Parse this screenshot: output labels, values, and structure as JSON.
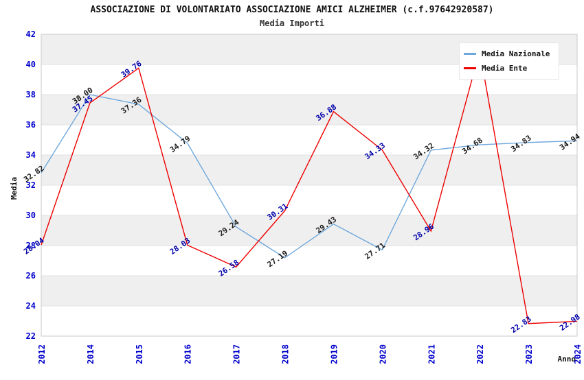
{
  "header": {
    "title": "ASSOCIAZIONE DI VOLONTARIATO ASSOCIAZIONE AMICI ALZHEIMER (c.f.97642920587)",
    "subtitle": "Media Importi"
  },
  "chart_data": {
    "type": "line",
    "title": "ASSOCIAZIONE DI VOLONTARIATO ASSOCIAZIONE AMICI ALZHEIMER (c.f.97642920587)",
    "subtitle": "Media Importi",
    "xlabel": "Anno",
    "ylabel": "Media",
    "categories": [
      "2012",
      "2014",
      "2015",
      "2016",
      "2017",
      "2018",
      "2019",
      "2020",
      "2021",
      "2022",
      "2023",
      "2024"
    ],
    "series": [
      {
        "name": "Media Nazionale",
        "color": "#6FA8DC",
        "label_color": "#1A1A1A",
        "values": [
          32.82,
          38.0,
          37.36,
          34.79,
          29.24,
          27.19,
          29.43,
          27.71,
          34.32,
          34.68,
          34.83,
          34.94
        ]
      },
      {
        "name": "Media Ente",
        "color": "#EE0000",
        "label_color": "#0000AA",
        "values": [
          28.04,
          37.45,
          39.76,
          28.03,
          26.58,
          30.31,
          36.88,
          34.33,
          28.96,
          40.9,
          22.83,
          22.98
        ]
      }
    ],
    "ylim": [
      22,
      42
    ],
    "ytick_step": 2,
    "yticks": [
      22,
      24,
      26,
      28,
      30,
      32,
      34,
      36,
      38,
      40,
      42
    ],
    "legend_position": "top-right",
    "grid": "horizontal-alternating-bands",
    "band_color": "#EFEFEF",
    "tick_color": "#0000CC",
    "label_rotation_deg": -35,
    "x_tick_rotation_deg": -90
  },
  "legend": {
    "items": [
      {
        "label": "Media Nazionale",
        "color": "#6FA8DC"
      },
      {
        "label": "Media Ente",
        "color": "#EE0000"
      }
    ]
  }
}
